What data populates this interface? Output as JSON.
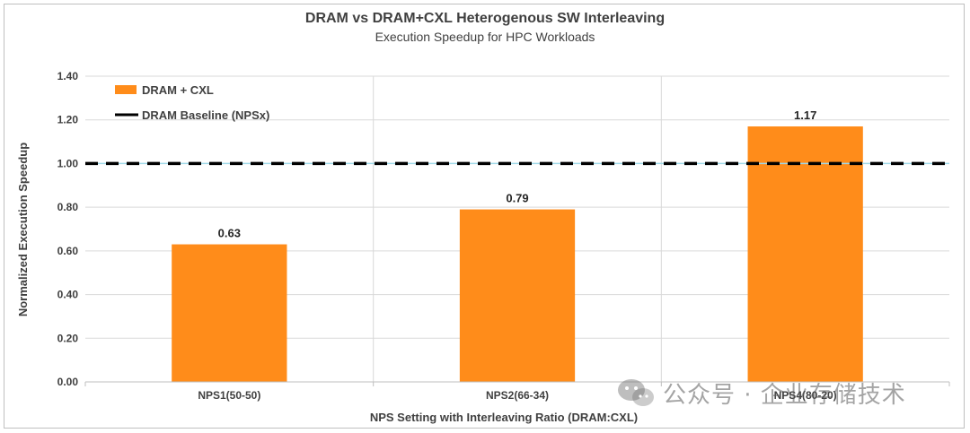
{
  "chart_data": {
    "type": "bar",
    "title": "DRAM vs DRAM+CXL Heterogenous SW Interleaving",
    "subtitle": "Execution Speedup for HPC Workloads",
    "xlabel": "NPS Setting with Interleaving Ratio (DRAM:CXL)",
    "ylabel": "Normalized  Execution Speedup",
    "categories": [
      "NPS1(50-50)",
      "NPS2(66-34)",
      "NPS4(80-20)"
    ],
    "series": [
      {
        "name": "DRAM + CXL",
        "values": [
          0.63,
          0.79,
          1.17
        ],
        "color": "#ff8c1a"
      }
    ],
    "data_labels": [
      "0.63",
      "0.79",
      "1.17"
    ],
    "baseline": {
      "name": "DRAM Baseline (NPSx)",
      "value": 1.0,
      "color": "#000000",
      "style": "dashed"
    },
    "ylim": [
      0,
      1.4
    ],
    "yticks": [
      "0.00",
      "0.20",
      "0.40",
      "0.60",
      "0.80",
      "1.00",
      "1.20",
      "1.40"
    ],
    "grid": true,
    "legend_position": "top-left"
  },
  "watermark": {
    "text": "公众号 · 企业存储技术",
    "icon": "wechat-icon"
  }
}
